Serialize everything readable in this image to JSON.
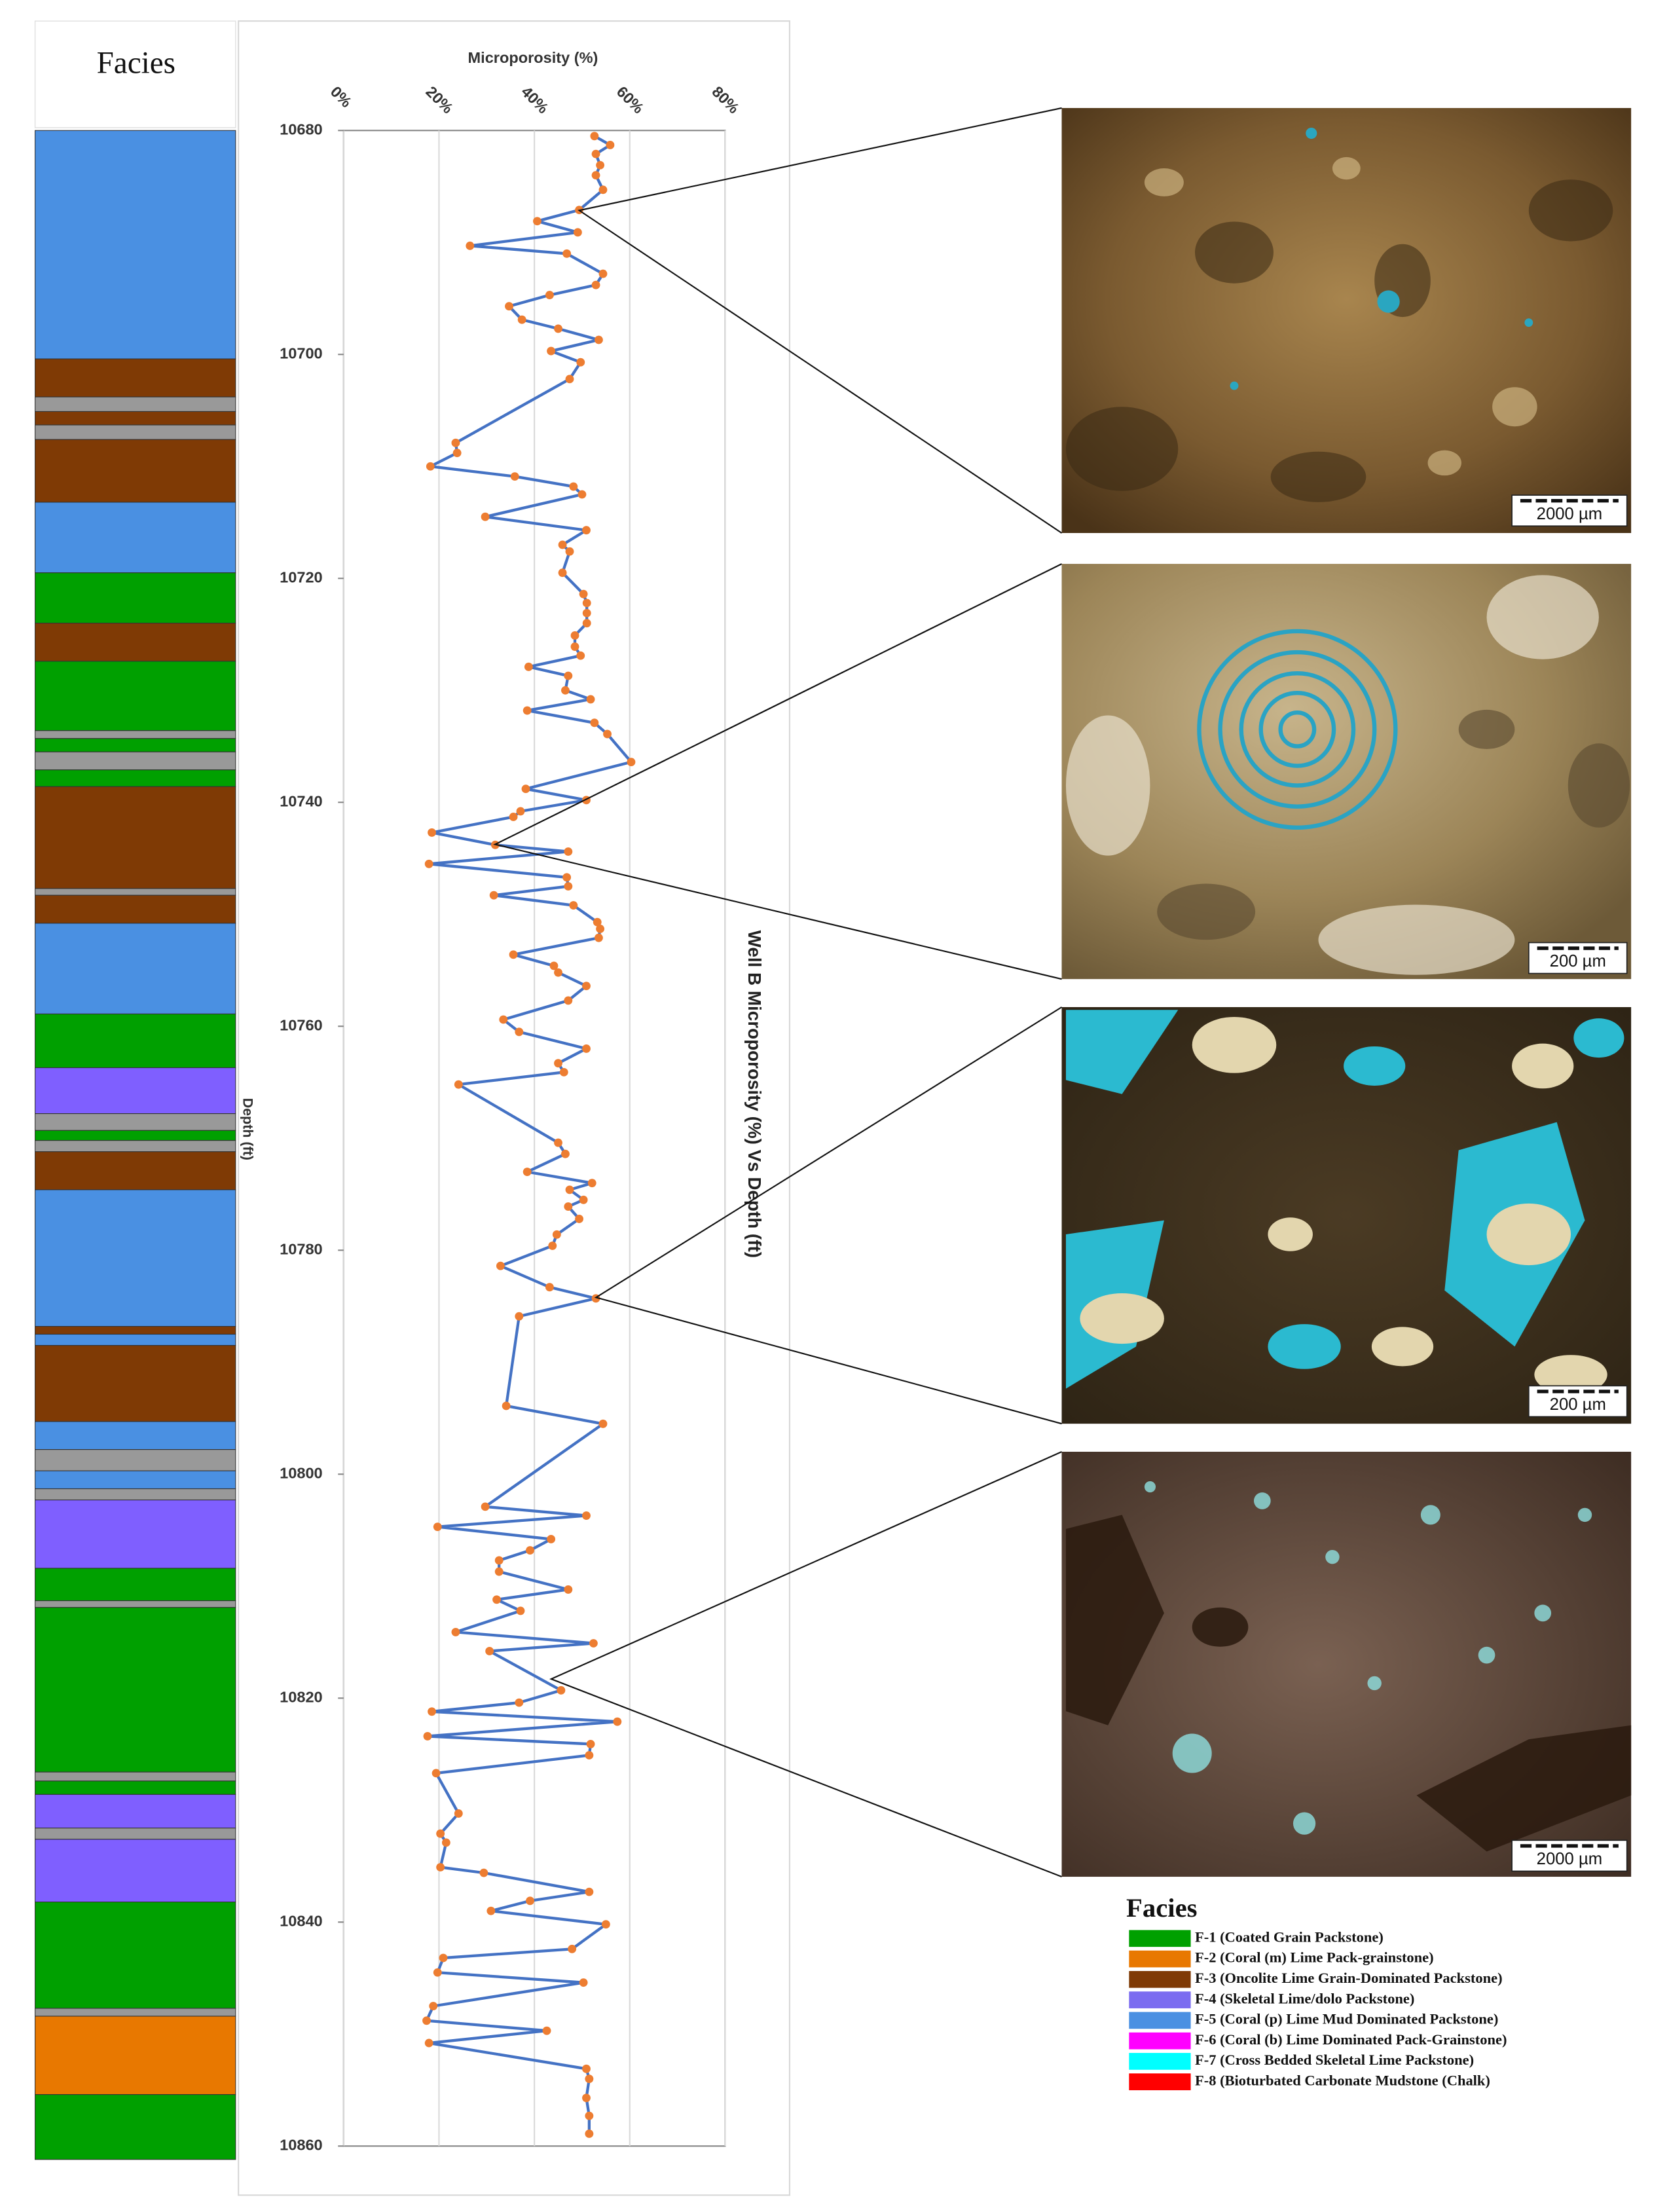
{
  "chart_data": {
    "type": "line",
    "title": "Well B Microporosity (%) Vs Depth (ft)",
    "value_axis_label": "Microporosity (%)",
    "depth_axis_label": "Depth (ft)",
    "color": "#4472c4",
    "marker_color": "#ed7d31",
    "grid": true,
    "xlim": [
      0,
      80
    ],
    "xticks": [
      {
        "value": 0,
        "label": "0%"
      },
      {
        "value": 20,
        "label": "20%"
      },
      {
        "value": 40,
        "label": "40%"
      },
      {
        "value": 60,
        "label": "60%"
      },
      {
        "value": 80,
        "label": "80%"
      }
    ],
    "ylim": [
      10680,
      10860
    ],
    "yticks": [
      10680,
      10700,
      10720,
      10740,
      10760,
      10780,
      10800,
      10820,
      10840,
      10860
    ],
    "depth": [
      10680.5,
      10681.3,
      10682.1,
      10683.1,
      10684.0,
      10685.3,
      10687.1,
      10688.1,
      10689.1,
      10690.3,
      10691.0,
      10692.8,
      10693.8,
      10694.7,
      10695.7,
      10696.9,
      10697.7,
      10698.7,
      10699.7,
      10700.7,
      10702.2,
      10707.9,
      10708.8,
      10710.0,
      10710.9,
      10711.8,
      10712.5,
      10714.5,
      10715.7,
      10717.0,
      10717.6,
      10719.5,
      10721.4,
      10722.2,
      10723.1,
      10724.0,
      10725.1,
      10726.1,
      10726.9,
      10727.9,
      10728.7,
      10730.0,
      10730.8,
      10731.8,
      10732.9,
      10733.9,
      10736.4,
      10738.8,
      10739.8,
      10740.8,
      10741.3,
      10742.7,
      10743.8,
      10744.4,
      10745.5,
      10746.7,
      10747.5,
      10748.3,
      10749.2,
      10750.7,
      10751.3,
      10752.1,
      10753.6,
      10754.6,
      10755.2,
      10756.4,
      10757.7,
      10759.4,
      10760.5,
      10762.0,
      10763.3,
      10764.1,
      10765.2,
      10770.4,
      10771.4,
      10773.0,
      10774.0,
      10774.6,
      10775.5,
      10776.1,
      10777.2,
      10778.6,
      10779.6,
      10781.4,
      10783.3,
      10784.3,
      10785.9,
      10793.9,
      10795.5,
      10802.9,
      10803.7,
      10804.7,
      10805.8,
      10806.8,
      10807.7,
      10808.7,
      10810.3,
      10811.2,
      10812.2,
      10814.1,
      10815.1,
      10815.8,
      10819.3,
      10820.4,
      10821.2,
      10822.1,
      10823.4,
      10824.1,
      10825.1,
      10826.7,
      10830.3,
      10832.1,
      10832.9,
      10835.1,
      10835.6,
      10837.3,
      10838.1,
      10839.0,
      10840.2,
      10842.4,
      10843.2,
      10844.5,
      10845.4,
      10847.5,
      10848.8,
      10849.7,
      10850.8,
      10853.1,
      10854.0,
      10855.7,
      10857.3,
      10858.9
    ],
    "values": [
      52.6,
      55.9,
      52.9,
      53.8,
      52.9,
      54.4,
      49.4,
      40.6,
      49.1,
      26.5,
      46.8,
      54.4,
      52.9,
      43.2,
      34.7,
      37.4,
      45.0,
      53.5,
      43.5,
      49.7,
      47.4,
      23.5,
      23.8,
      18.2,
      35.9,
      48.2,
      50.0,
      29.7,
      50.9,
      45.9,
      47.4,
      45.9,
      50.3,
      51.0,
      51.0,
      51.0,
      48.5,
      48.5,
      49.7,
      38.8,
      47.1,
      46.5,
      51.8,
      38.5,
      52.6,
      55.3,
      60.3,
      38.2,
      50.9,
      37.1,
      35.6,
      18.5,
      31.8,
      47.1,
      17.9,
      46.8,
      47.1,
      31.5,
      48.2,
      53.2,
      53.8,
      53.5,
      35.6,
      44.1,
      45.0,
      50.9,
      47.1,
      33.5,
      36.8,
      50.9,
      45.0,
      46.2,
      24.1,
      45.0,
      46.5,
      38.5,
      52.1,
      47.4,
      50.3,
      47.1,
      49.4,
      44.7,
      43.8,
      32.9,
      43.2,
      52.9,
      36.8,
      34.1,
      54.4,
      29.7,
      50.9,
      19.7,
      43.5,
      39.1,
      32.6,
      32.6,
      47.1,
      32.1,
      37.1,
      23.5,
      52.4,
      30.6,
      45.6,
      36.8,
      18.5,
      57.4,
      17.6,
      51.8,
      51.5,
      19.4,
      24.1,
      20.3,
      21.5,
      20.3,
      29.4,
      51.5,
      39.1,
      30.9,
      55.0,
      47.9,
      20.9,
      19.7,
      50.3,
      18.8,
      17.4,
      42.6,
      17.9,
      50.9,
      51.5,
      50.9,
      51.5,
      51.5
    ],
    "facies_column": {
      "title": "Facies",
      "layers": [
        {
          "color": "#4a90e2",
          "depth": [
            10680.0,
            10700.4
          ]
        },
        {
          "color": "#7f3a05",
          "depth": [
            10700.4,
            10703.8
          ]
        },
        {
          "color": "#999999",
          "depth": [
            10703.8,
            10705.1
          ]
        },
        {
          "color": "#7f3a05",
          "depth": [
            10705.1,
            10706.3
          ]
        },
        {
          "color": "#999999",
          "depth": [
            10706.3,
            10707.6
          ]
        },
        {
          "color": "#7f3a05",
          "depth": [
            10707.6,
            10713.2
          ]
        },
        {
          "color": "#4a90e2",
          "depth": [
            10713.2,
            10719.5
          ]
        },
        {
          "color": "#00a000",
          "depth": [
            10719.5,
            10724.0
          ]
        },
        {
          "color": "#7f3a05",
          "depth": [
            10724.0,
            10727.4
          ]
        },
        {
          "color": "#00a000",
          "depth": [
            10727.4,
            10733.6
          ]
        },
        {
          "color": "#999999",
          "depth": [
            10733.6,
            10734.3
          ]
        },
        {
          "color": "#00a000",
          "depth": [
            10734.3,
            10735.5
          ]
        },
        {
          "color": "#999999",
          "depth": [
            10735.5,
            10737.1
          ]
        },
        {
          "color": "#00a000",
          "depth": [
            10737.1,
            10738.6
          ]
        },
        {
          "color": "#7f3a05",
          "depth": [
            10738.6,
            10747.7
          ]
        },
        {
          "color": "#999999",
          "depth": [
            10747.7,
            10748.3
          ]
        },
        {
          "color": "#7f3a05",
          "depth": [
            10748.3,
            10750.8
          ]
        },
        {
          "color": "#4a90e2",
          "depth": [
            10750.8,
            10758.9
          ]
        },
        {
          "color": "#00a000",
          "depth": [
            10758.9,
            10763.7
          ]
        },
        {
          "color": "#7f5fff",
          "depth": [
            10763.7,
            10767.8
          ]
        },
        {
          "color": "#999999",
          "depth": [
            10767.8,
            10769.3
          ]
        },
        {
          "color": "#00a000",
          "depth": [
            10769.3,
            10770.2
          ]
        },
        {
          "color": "#999999",
          "depth": [
            10770.2,
            10771.2
          ]
        },
        {
          "color": "#7f3a05",
          "depth": [
            10771.2,
            10774.6
          ]
        },
        {
          "color": "#4a90e2",
          "depth": [
            10774.6,
            10786.8
          ]
        },
        {
          "color": "#7f3a05",
          "depth": [
            10786.8,
            10787.5
          ]
        },
        {
          "color": "#4a90e2",
          "depth": [
            10787.5,
            10788.5
          ]
        },
        {
          "color": "#7f3a05",
          "depth": [
            10788.5,
            10795.3
          ]
        },
        {
          "color": "#4a90e2",
          "depth": [
            10795.3,
            10797.8
          ]
        },
        {
          "color": "#999999",
          "depth": [
            10797.8,
            10799.7
          ]
        },
        {
          "color": "#4a90e2",
          "depth": [
            10799.7,
            10801.3
          ]
        },
        {
          "color": "#999999",
          "depth": [
            10801.3,
            10802.3
          ]
        },
        {
          "color": "#7f5fff",
          "depth": [
            10802.3,
            10808.4
          ]
        },
        {
          "color": "#00a000",
          "depth": [
            10808.4,
            10811.3
          ]
        },
        {
          "color": "#999999",
          "depth": [
            10811.3,
            10811.9
          ]
        },
        {
          "color": "#00a000",
          "depth": [
            10811.9,
            10826.6
          ]
        },
        {
          "color": "#999999",
          "depth": [
            10826.6,
            10827.4
          ]
        },
        {
          "color": "#00a000",
          "depth": [
            10827.4,
            10828.6
          ]
        },
        {
          "color": "#7f5fff",
          "depth": [
            10828.6,
            10831.6
          ]
        },
        {
          "color": "#999999",
          "depth": [
            10831.6,
            10832.6
          ]
        },
        {
          "color": "#7f5fff",
          "depth": [
            10832.6,
            10838.2
          ]
        },
        {
          "color": "#00a000",
          "depth": [
            10838.2,
            10847.7
          ]
        },
        {
          "color": "#999999",
          "depth": [
            10847.7,
            10848.4
          ]
        },
        {
          "color": "#e87800",
          "depth": [
            10848.4,
            10855.4
          ]
        },
        {
          "color": "#00a000",
          "depth": [
            10855.4,
            10861.2
          ]
        }
      ]
    },
    "legend": {
      "title": "Facies",
      "items": [
        {
          "label": "F-1 (Coated Grain Packstone)",
          "color": "#00a000"
        },
        {
          "label": "F-2 (Coral (m) Lime Pack-grainstone)",
          "color": "#e87800"
        },
        {
          "label": "F-3 (Oncolite Lime Grain-Dominated Packstone)",
          "color": "#7f3a05"
        },
        {
          "label": "F-4 (Skeletal Lime/dolo Packstone)",
          "color": "#7b6cf0"
        },
        {
          "label": "F-5 (Coral (p) Lime Mud Dominated Packstone)",
          "color": "#4a90e2"
        },
        {
          "label": "F-6 (Coral (b) Lime Dominated Pack-Grainstone)",
          "color": "#ff00ff"
        },
        {
          "label": "F-7 (Cross Bedded Skeletal Lime Packstone)",
          "color": "#00ffff"
        },
        {
          "label": "F-8 (Bioturbated Carbonate Mudstone (Chalk)",
          "color": "#ff0000"
        }
      ]
    },
    "micrographs": [
      {
        "scale_label": "2000 µm"
      },
      {
        "scale_label": "200 µm"
      },
      {
        "scale_label": "200 µm"
      },
      {
        "scale_label": "2000 µm"
      }
    ]
  }
}
